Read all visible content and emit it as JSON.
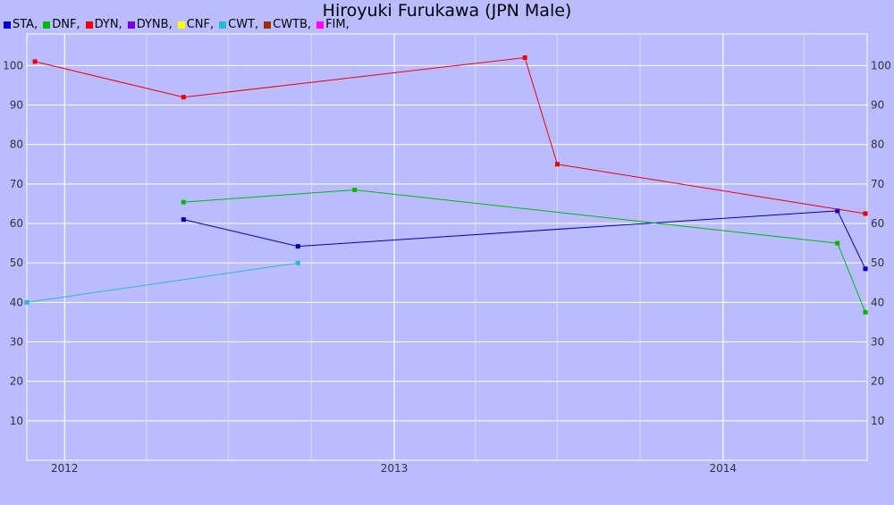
{
  "chart_data": {
    "type": "line",
    "title": "Hiroyuki Furukawa (JPN Male)",
    "xlabel": "",
    "ylabel": "",
    "ylim": [
      0,
      108
    ],
    "xlim": [
      "2011-11-20",
      "2014-06-10"
    ],
    "y_ticks": [
      10,
      20,
      30,
      40,
      50,
      60,
      70,
      80,
      90,
      100
    ],
    "x_ticks": [
      {
        "date": "2012-01-01",
        "label": "2012"
      },
      {
        "date": "2013-01-01",
        "label": "2013"
      },
      {
        "date": "2014-01-01",
        "label": "2014"
      }
    ],
    "grid": true,
    "legend_position": "top-left",
    "legend": [
      {
        "label": "STA,",
        "color": "#0000cc"
      },
      {
        "label": "DNF,",
        "color": "#00bb00"
      },
      {
        "label": "DYN,",
        "color": "#ee0000"
      },
      {
        "label": "DYNB,",
        "color": "#7700ee"
      },
      {
        "label": "CNF,",
        "color": "#ffff00"
      },
      {
        "label": "CWT,",
        "color": "#22bbcc"
      },
      {
        "label": "CWTB,",
        "color": "#993300"
      },
      {
        "label": "FIM,",
        "color": "#ff00ff"
      }
    ],
    "series": [
      {
        "name": "STA",
        "color": "#0000bb",
        "points": [
          {
            "x": "2012-05-12",
            "y": 61
          },
          {
            "x": "2012-09-16",
            "y": 54.2
          },
          {
            "x": "2014-05-08",
            "y": 63.2
          },
          {
            "x": "2014-06-08",
            "y": 48.5
          }
        ]
      },
      {
        "name": "DNF",
        "color": "#00bb00",
        "points": [
          {
            "x": "2012-05-12",
            "y": 65.4
          },
          {
            "x": "2012-11-18",
            "y": 68.5
          },
          {
            "x": "2014-05-08",
            "y": 55
          },
          {
            "x": "2014-06-08",
            "y": 37.5
          }
        ]
      },
      {
        "name": "DYN",
        "color": "#ee0000",
        "points": [
          {
            "x": "2011-11-29",
            "y": 101
          },
          {
            "x": "2012-05-12",
            "y": 92
          },
          {
            "x": "2013-05-26",
            "y": 102
          },
          {
            "x": "2013-07-01",
            "y": 75
          },
          {
            "x": "2014-06-08",
            "y": 62.5
          }
        ]
      },
      {
        "name": "CWT",
        "color": "#22bbcc",
        "points": [
          {
            "x": "2011-11-20",
            "y": 40
          },
          {
            "x": "2012-09-16",
            "y": 50
          }
        ]
      }
    ]
  }
}
